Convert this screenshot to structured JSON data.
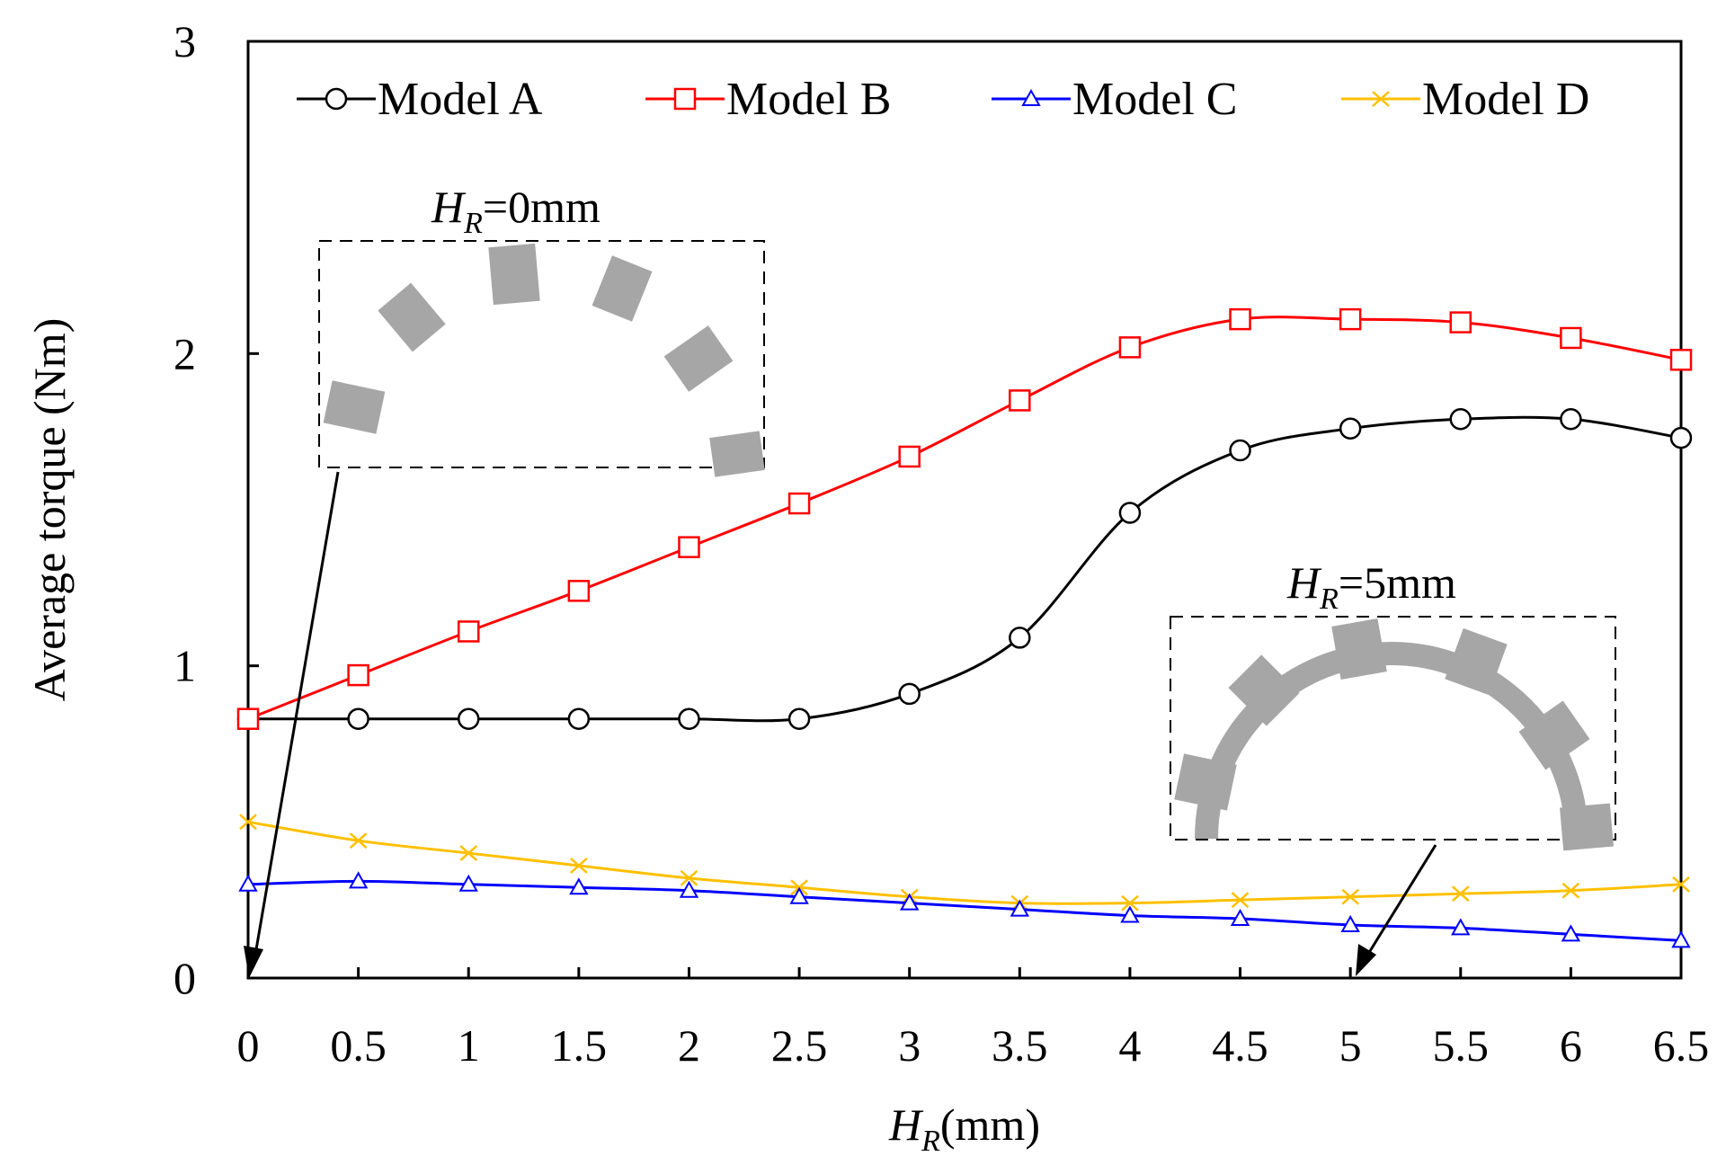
{
  "chart_data": {
    "type": "line",
    "title": "",
    "xlabel": {
      "italic": "H",
      "sub": "R",
      "rest": "(mm)"
    },
    "ylabel": "Average torque  (Nm)",
    "xlim": [
      0,
      6.5
    ],
    "ylim": [
      0,
      3
    ],
    "x": [
      0,
      0.5,
      1,
      1.5,
      2,
      2.5,
      3,
      3.5,
      4,
      4.5,
      5,
      5.5,
      6,
      6.5
    ],
    "x_tick_labels": [
      "0",
      "0.5",
      "1",
      "1.5",
      "2",
      "2.5",
      "3",
      "3.5",
      "4",
      "4.5",
      "5",
      "5.5",
      "6",
      "6.5"
    ],
    "y_ticks": [
      0,
      1,
      2,
      3
    ],
    "y_tick_labels": [
      "0",
      "1",
      "2",
      "3"
    ],
    "legend_position": "top",
    "series": [
      {
        "name": "Model A",
        "color": "#000000",
        "marker": "circle",
        "values": [
          0.83,
          0.83,
          0.83,
          0.83,
          0.83,
          0.83,
          0.91,
          1.09,
          1.49,
          1.69,
          1.76,
          1.79,
          1.79,
          1.73
        ]
      },
      {
        "name": "Model B",
        "color": "#ff0000",
        "marker": "square",
        "values": [
          0.83,
          0.97,
          1.11,
          1.24,
          1.38,
          1.52,
          1.67,
          1.85,
          2.02,
          2.11,
          2.11,
          2.1,
          2.05,
          1.98
        ]
      },
      {
        "name": "Model C",
        "color": "#0000ff",
        "marker": "triangle",
        "values": [
          0.3,
          0.31,
          0.3,
          0.29,
          0.28,
          0.26,
          0.24,
          0.22,
          0.2,
          0.19,
          0.17,
          0.16,
          0.14,
          0.12
        ]
      },
      {
        "name": "Model D",
        "color": "#ffc000",
        "marker": "x",
        "values": [
          0.5,
          0.44,
          0.4,
          0.36,
          0.32,
          0.29,
          0.26,
          0.24,
          0.24,
          0.25,
          0.26,
          0.27,
          0.28,
          0.3
        ]
      }
    ],
    "annotations": [
      {
        "italic": "H",
        "sub": "R",
        "rest": "=0mm",
        "target_x": 0
      },
      {
        "italic": "H",
        "sub": "R",
        "rest": "=5mm",
        "target_x": 5
      }
    ]
  }
}
